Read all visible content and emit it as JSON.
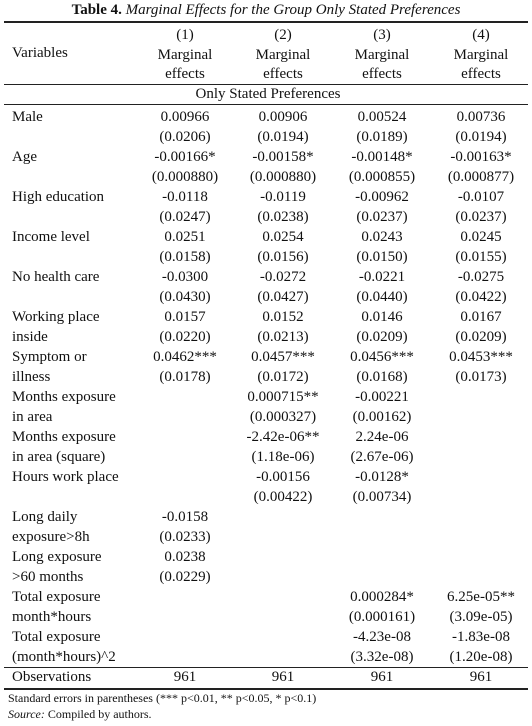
{
  "caption": {
    "label": "Table 4.",
    "title": "Marginal Effects for the Group Only Stated Preferences"
  },
  "table": {
    "header_label": "Variables",
    "columns": [
      {
        "number": "(1)",
        "name": [
          "Marginal",
          "effects"
        ]
      },
      {
        "number": "(2)",
        "name": [
          "Marginal",
          "effects"
        ]
      },
      {
        "number": "(3)",
        "name": [
          "Marginal",
          "effects"
        ]
      },
      {
        "number": "(4)",
        "name": [
          "Marginal",
          "effects"
        ]
      }
    ],
    "section": "Only Stated Preferences",
    "rows": [
      {
        "label": [
          "Male"
        ],
        "cells": [
          [
            "0.00966",
            "(0.0206)"
          ],
          [
            "0.00906",
            "(0.0194)"
          ],
          [
            "0.00524",
            "(0.0189)"
          ],
          [
            "0.00736",
            "(0.0194)"
          ]
        ]
      },
      {
        "label": [
          "Age"
        ],
        "cells": [
          [
            "-0.00166*",
            "(0.000880)"
          ],
          [
            "-0.00158*",
            "(0.000880)"
          ],
          [
            "-0.00148*",
            "(0.000855)"
          ],
          [
            "-0.00163*",
            "(0.000877)"
          ]
        ]
      },
      {
        "label": [
          "High education"
        ],
        "cells": [
          [
            "-0.0118",
            "(0.0247)"
          ],
          [
            "-0.0119",
            "(0.0238)"
          ],
          [
            "-0.00962",
            "(0.0237)"
          ],
          [
            "-0.0107",
            "(0.0237)"
          ]
        ]
      },
      {
        "label": [
          "Income level"
        ],
        "cells": [
          [
            "0.0251",
            "(0.0158)"
          ],
          [
            "0.0254",
            "(0.0156)"
          ],
          [
            "0.0243",
            "(0.0150)"
          ],
          [
            "0.0245",
            "(0.0155)"
          ]
        ]
      },
      {
        "label": [
          "No health care"
        ],
        "cells": [
          [
            "-0.0300",
            "(0.0430)"
          ],
          [
            "-0.0272",
            "(0.0427)"
          ],
          [
            "-0.0221",
            "(0.0440)"
          ],
          [
            "-0.0275",
            "(0.0422)"
          ]
        ]
      },
      {
        "label": [
          "Working place",
          "inside"
        ],
        "cells": [
          [
            "0.0157",
            "(0.0220)"
          ],
          [
            "0.0152",
            "(0.0213)"
          ],
          [
            "0.0146",
            "(0.0209)"
          ],
          [
            "0.0167",
            "(0.0209)"
          ]
        ]
      },
      {
        "label": [
          "Symptom or",
          "illness"
        ],
        "cells": [
          [
            "0.0462***",
            "(0.0178)"
          ],
          [
            "0.0457***",
            "(0.0172)"
          ],
          [
            "0.0456***",
            "(0.0168)"
          ],
          [
            "0.0453***",
            "(0.0173)"
          ]
        ]
      },
      {
        "label": [
          "Months exposure",
          "in area"
        ],
        "cells": [
          null,
          [
            "0.000715**",
            "(0.000327)"
          ],
          [
            "-0.00221",
            "(0.00162)"
          ],
          null
        ]
      },
      {
        "label": [
          "Months exposure",
          "in area (square)"
        ],
        "cells": [
          null,
          [
            "-2.42e-06**",
            "(1.18e-06)"
          ],
          [
            "2.24e-06",
            "(2.67e-06)"
          ],
          null
        ]
      },
      {
        "label": [
          "Hours work place"
        ],
        "cells": [
          null,
          [
            "-0.00156",
            "(0.00422)"
          ],
          [
            "-0.0128*",
            "(0.00734)"
          ],
          null
        ]
      },
      {
        "label": [
          "Long daily",
          "exposure>8h"
        ],
        "cells": [
          [
            "-0.0158",
            "(0.0233)"
          ],
          null,
          null,
          null
        ]
      },
      {
        "label": [
          "Long exposure",
          ">60 months"
        ],
        "cells": [
          [
            "0.0238",
            "(0.0229)"
          ],
          null,
          null,
          null
        ]
      },
      {
        "label": [
          "Total exposure",
          "month*hours"
        ],
        "cells": [
          null,
          null,
          [
            "0.000284*",
            "(0.000161)"
          ],
          [
            "6.25e-05**",
            "(3.09e-05)"
          ]
        ]
      },
      {
        "label": [
          "Total exposure",
          "(month*hours)^2"
        ],
        "cells": [
          null,
          null,
          [
            "-4.23e-08",
            "(3.32e-08)"
          ],
          [
            "-1.83e-08",
            "(1.20e-08)"
          ]
        ]
      }
    ],
    "observations": {
      "label": "Observations",
      "values": [
        "961",
        "961",
        "961",
        "961"
      ]
    }
  },
  "notes": {
    "standard_errors": "Standard errors in parentheses (*** p<0.01, ** p<0.05, * p<0.1)",
    "source": {
      "label": "Source:",
      "text": "Compiled by authors."
    }
  }
}
